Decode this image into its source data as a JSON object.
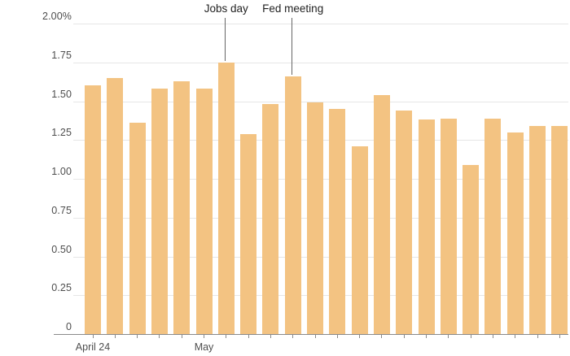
{
  "chart_data": {
    "type": "bar",
    "title": "",
    "xlabel": "",
    "ylabel": "",
    "ylim": [
      0,
      2.0
    ],
    "grid": "horizontal",
    "legend": "none",
    "values": [
      1.6,
      1.65,
      1.36,
      1.58,
      1.63,
      1.58,
      1.75,
      1.29,
      1.48,
      1.66,
      1.49,
      1.45,
      1.21,
      1.54,
      1.44,
      1.38,
      1.39,
      1.09,
      1.39,
      1.3,
      1.34,
      1.34
    ],
    "y_ticks": [
      {
        "value": 2.0,
        "label": "2.00%"
      },
      {
        "value": 1.75,
        "label": "1.75"
      },
      {
        "value": 1.5,
        "label": "1.50"
      },
      {
        "value": 1.25,
        "label": "1.25"
      },
      {
        "value": 1.0,
        "label": "1.00"
      },
      {
        "value": 0.75,
        "label": "0.75"
      },
      {
        "value": 0.5,
        "label": "0.50"
      },
      {
        "value": 0.25,
        "label": "0.25"
      },
      {
        "value": 0.0,
        "label": "0"
      }
    ],
    "x_tick_labels": [
      {
        "bar_index": 0,
        "label": "April 24"
      },
      {
        "bar_index": 5,
        "label": "May"
      }
    ],
    "annotations": [
      {
        "label": "Jobs day",
        "bar_index": 6
      },
      {
        "label": "Fed meeting",
        "bar_index": 9
      }
    ],
    "colors": {
      "bar": "#f3c382",
      "gridline": "#e6e6e6",
      "axis_line": "#8a8a8a",
      "tick": "#8a8a8a",
      "axis_label": "#4d4d4d",
      "annotation_text": "#222222",
      "annotation_line": "#666666",
      "background": "#ffffff"
    }
  }
}
